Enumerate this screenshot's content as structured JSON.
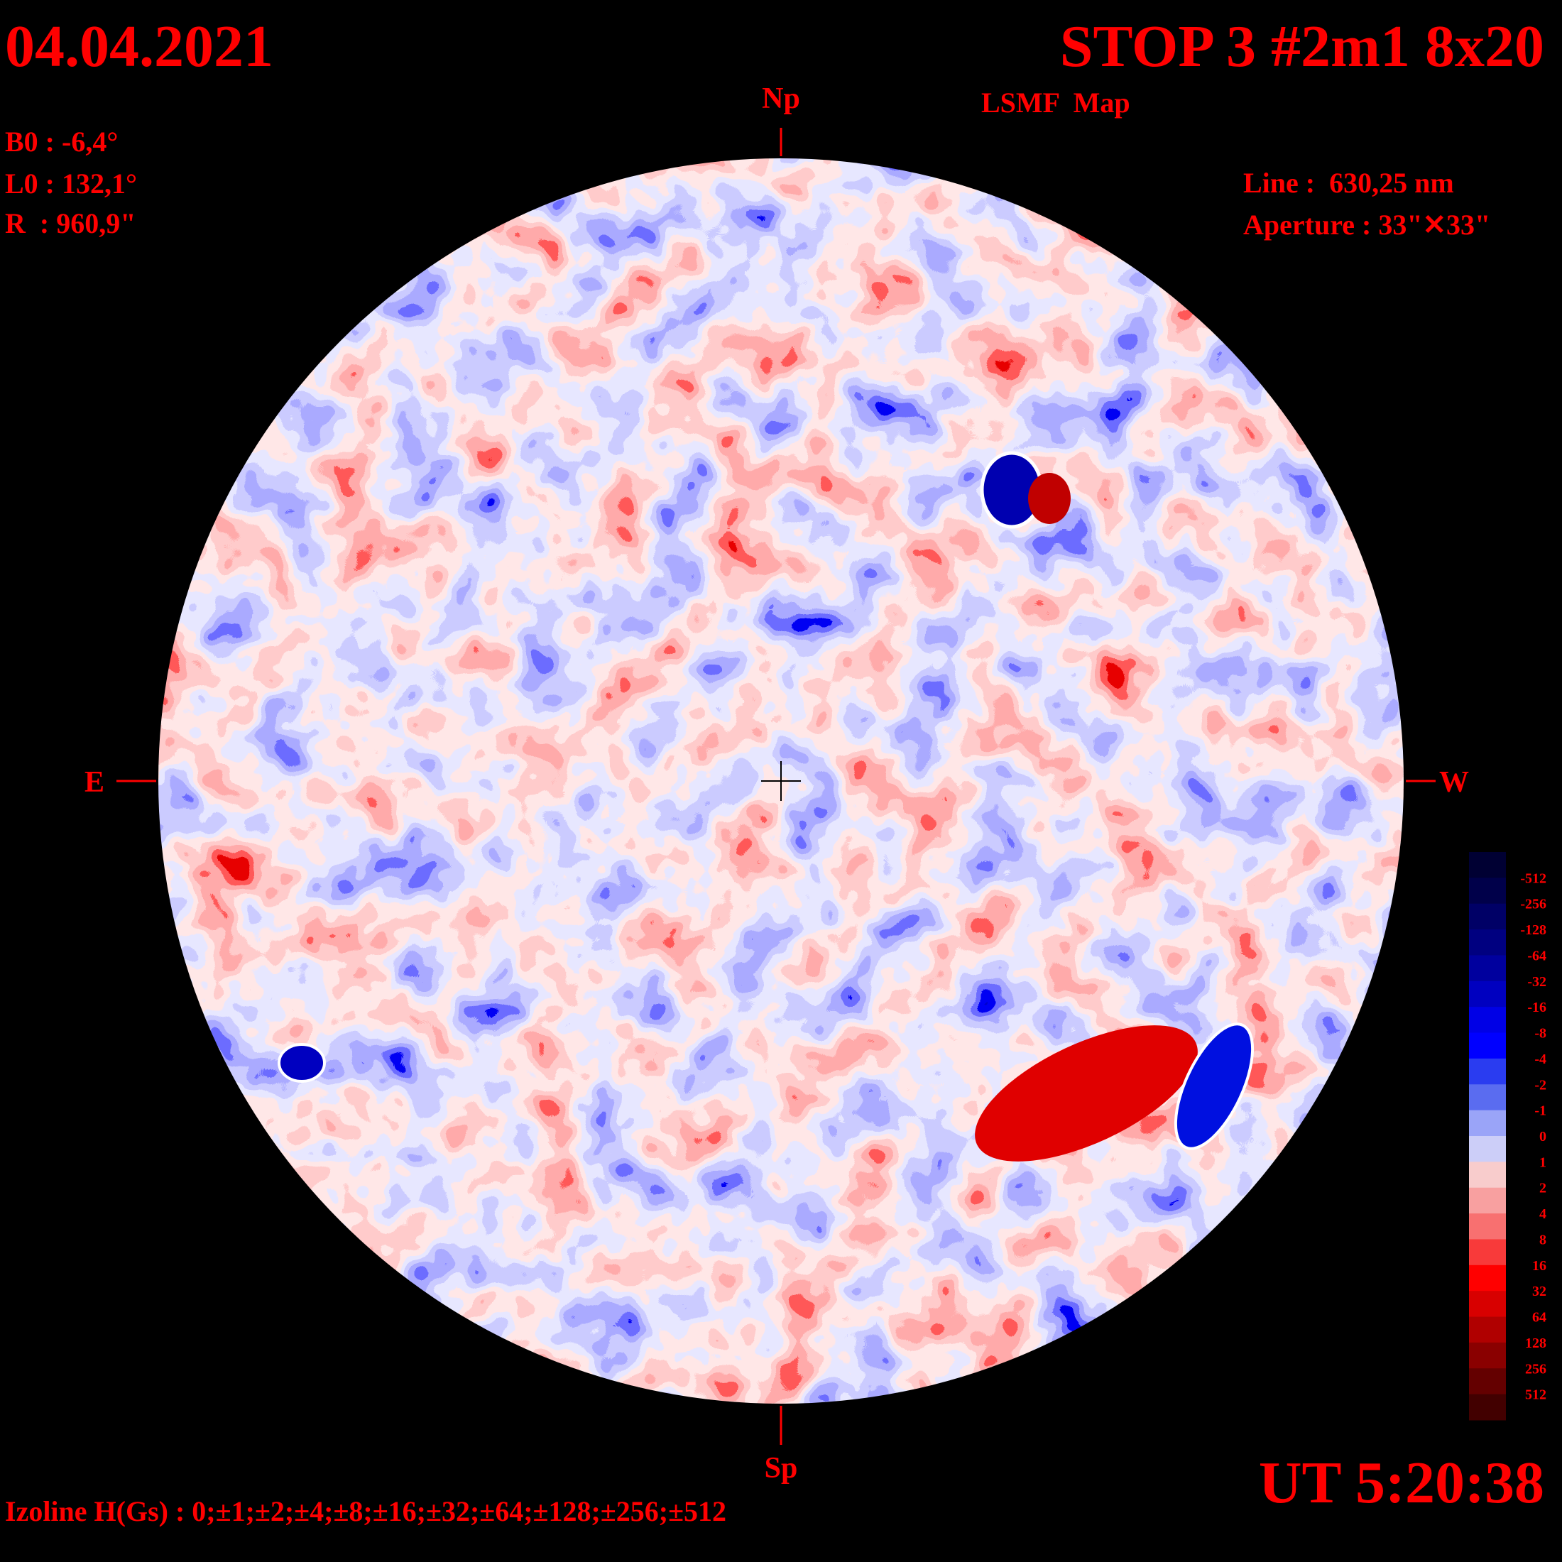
{
  "header": {
    "date": "04.04.2021",
    "title": "STOP 3 #2m1 8x20",
    "subtitle": "LSMF  Map",
    "time": "UT 5:20:38"
  },
  "parameters": {
    "b0": "B0 : -6,4°",
    "l0": "L0 : 132,1°",
    "radius": "R  : 960,9\"",
    "line": "Line :  630,25 nm",
    "aperture": "Aperture : 33\"✕33\""
  },
  "directions": {
    "north": "Np",
    "south": "Sp",
    "east": "E",
    "west": "W"
  },
  "colorbar": {
    "labels": [
      -512,
      -256,
      -128,
      -64,
      -32,
      -16,
      -8,
      -4,
      -2,
      -1,
      0,
      1,
      2,
      4,
      8,
      16,
      32,
      64,
      128,
      256,
      512
    ]
  },
  "footer": "Izoline H(Gs) : 0;±1;±2;±4;±8;±16;±32;±64;±128;±256;±512"
}
